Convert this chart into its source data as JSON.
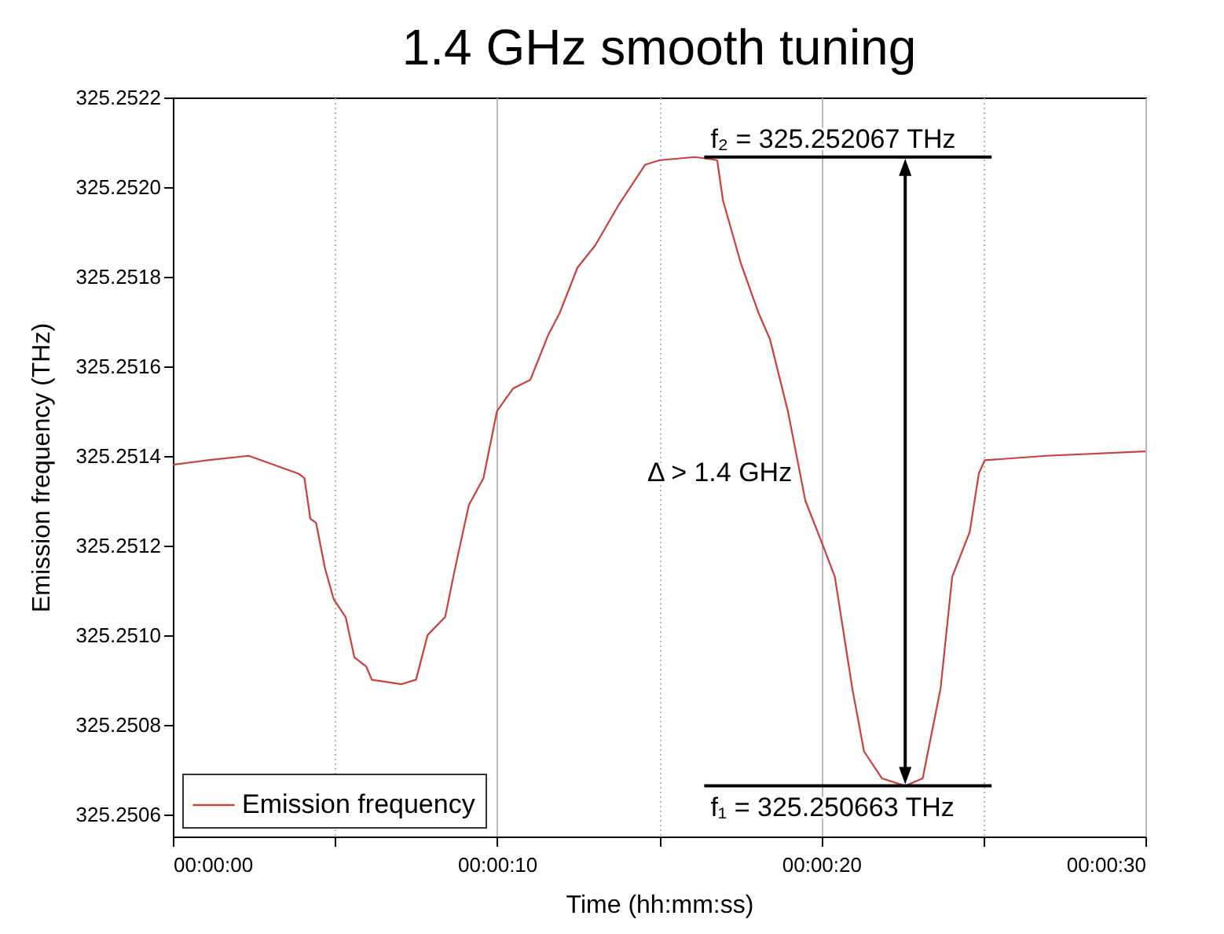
{
  "chart_data": {
    "type": "line",
    "title": "1.4 GHz smooth tuning",
    "xlabel": "Time (hh:mm:ss)",
    "ylabel": "Emission frequency (THz)",
    "x": [
      0,
      1.07,
      2.34,
      3.88,
      4.06,
      4.24,
      4.42,
      4.69,
      4.96,
      5.33,
      5.6,
      5.96,
      6.14,
      7.05,
      7.5,
      7.86,
      8.4,
      8.68,
      9.13,
      9.58,
      10,
      10.49,
      11.03,
      11.58,
      11.94,
      12.48,
      13.03,
      13.75,
      14.57,
      15.02,
      16.1,
      16.79,
      16.97,
      17.52,
      18.06,
      18.42,
      18.97,
      19.51,
      20.05,
      20.42,
      20.96,
      21.32,
      21.87,
      22.59,
      23.13,
      23.68,
      24.04,
      24.58,
      24.86,
      25.04,
      26.94,
      30
    ],
    "series": [
      {
        "name": "Emission frequency",
        "color": "#c9403f",
        "values": [
          325.25138,
          325.25139,
          325.2514,
          325.25136,
          325.25135,
          325.25126,
          325.25125,
          325.25115,
          325.25108,
          325.25104,
          325.25095,
          325.25093,
          325.2509,
          325.25089,
          325.2509,
          325.251,
          325.25104,
          325.25114,
          325.25129,
          325.25135,
          325.2515,
          325.25155,
          325.25157,
          325.25167,
          325.25172,
          325.25182,
          325.25187,
          325.25196,
          325.25205,
          325.25206,
          325.252067,
          325.25206,
          325.25197,
          325.25183,
          325.25172,
          325.25166,
          325.2515,
          325.2513,
          325.2512,
          325.25113,
          325.25088,
          325.25074,
          325.25068,
          325.250663,
          325.25068,
          325.25088,
          325.25113,
          325.25123,
          325.25136,
          325.25139,
          325.2514,
          325.25141
        ]
      }
    ],
    "xlim": [
      0,
      30
    ],
    "xticks": [
      {
        "value": 0,
        "label": "00:00:00"
      },
      {
        "value": 5,
        "label": null
      },
      {
        "value": 10,
        "label": "00:00:10"
      },
      {
        "value": 15,
        "label": null
      },
      {
        "value": 20,
        "label": "00:00:20"
      },
      {
        "value": 25,
        "label": null
      },
      {
        "value": 30,
        "label": "00:00:30"
      }
    ],
    "ylim": [
      325.25055,
      325.2522
    ],
    "yticks": [
      325.2506,
      325.2508,
      {
        "value": 325.251,
        "label": "325.2510"
      },
      325.2512,
      325.2514,
      325.2516,
      325.2518,
      {
        "value": 325.252,
        "label": "325.2520"
      },
      325.2522
    ],
    "grid": "x",
    "legend": "bottom left",
    "annotations": [
      "f₂ = 325.252067 THz",
      "f₁ = 325.250663 THz",
      "Δ > 1.4 GHz"
    ]
  }
}
